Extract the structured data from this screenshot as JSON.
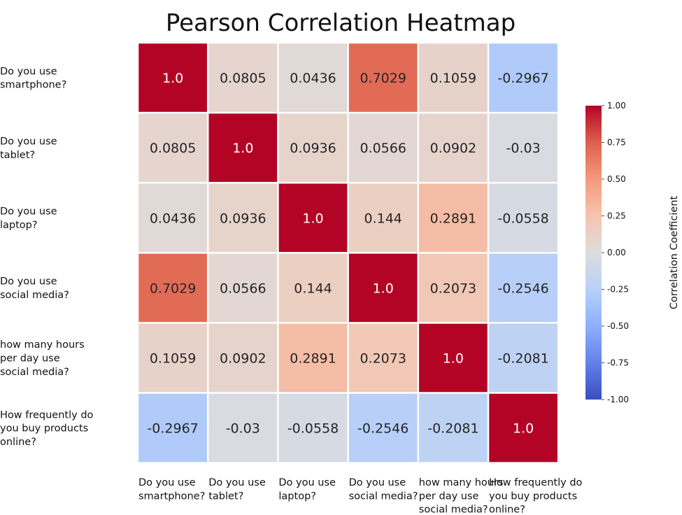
{
  "chart_data": {
    "type": "heatmap",
    "title": "Pearson Correlation Heatmap",
    "row_labels": [
      [
        "Do you use",
        "smartphone?"
      ],
      [
        "Do you use",
        "tablet?"
      ],
      [
        "Do you use",
        "laptop?"
      ],
      [
        "Do you use",
        "social media?"
      ],
      [
        "how many hours",
        "per day use",
        "social media?"
      ],
      [
        "How frequently do",
        "you buy products",
        "online?"
      ]
    ],
    "col_labels": [
      [
        "Do you use",
        "smartphone?"
      ],
      [
        "Do you use",
        "tablet?"
      ],
      [
        "Do you use",
        "laptop?"
      ],
      [
        "Do you use",
        "social media?"
      ],
      [
        "how many hours",
        "per day use",
        "social media?"
      ],
      [
        "How frequently do",
        "you buy products",
        "online?"
      ]
    ],
    "values": [
      [
        1.0,
        0.0805,
        0.0436,
        0.7029,
        0.1059,
        -0.2967
      ],
      [
        0.0805,
        1.0,
        0.0936,
        0.0566,
        0.0902,
        -0.03
      ],
      [
        0.0436,
        0.0936,
        1.0,
        0.144,
        0.2891,
        -0.0558
      ],
      [
        0.7029,
        0.0566,
        0.144,
        1.0,
        0.2073,
        -0.2546
      ],
      [
        0.1059,
        0.0902,
        0.2891,
        0.2073,
        1.0,
        -0.2081
      ],
      [
        -0.2967,
        -0.03,
        -0.0558,
        -0.2546,
        -0.2081,
        1.0
      ]
    ],
    "cell_text": [
      [
        "1.0",
        "0.0805",
        "0.0436",
        "0.7029",
        "0.1059",
        "-0.2967"
      ],
      [
        "0.0805",
        "1.0",
        "0.0936",
        "0.0566",
        "0.0902",
        "-0.03"
      ],
      [
        "0.0436",
        "0.0936",
        "1.0",
        "0.144",
        "0.2891",
        "-0.0558"
      ],
      [
        "0.7029",
        "0.0566",
        "0.144",
        "1.0",
        "0.2073",
        "-0.2546"
      ],
      [
        "0.1059",
        "0.0902",
        "0.2891",
        "0.2073",
        "1.0",
        "-0.2081"
      ],
      [
        "-0.2967",
        "-0.03",
        "-0.0558",
        "-0.2546",
        "-0.2081",
        "1.0"
      ]
    ],
    "colormap": "coolwarm",
    "vmin": -1.0,
    "vmax": 1.0,
    "colorbar": {
      "label": "Correlation Coefficient",
      "ticks": [
        1.0,
        0.75,
        0.5,
        0.25,
        0.0,
        -0.25,
        -0.5,
        -0.75,
        -1.0
      ],
      "tick_labels": [
        "1.00",
        "0.75",
        "0.50",
        "0.25",
        "0.00",
        "-0.25",
        "-0.50",
        "-0.75",
        "-1.00"
      ]
    }
  }
}
